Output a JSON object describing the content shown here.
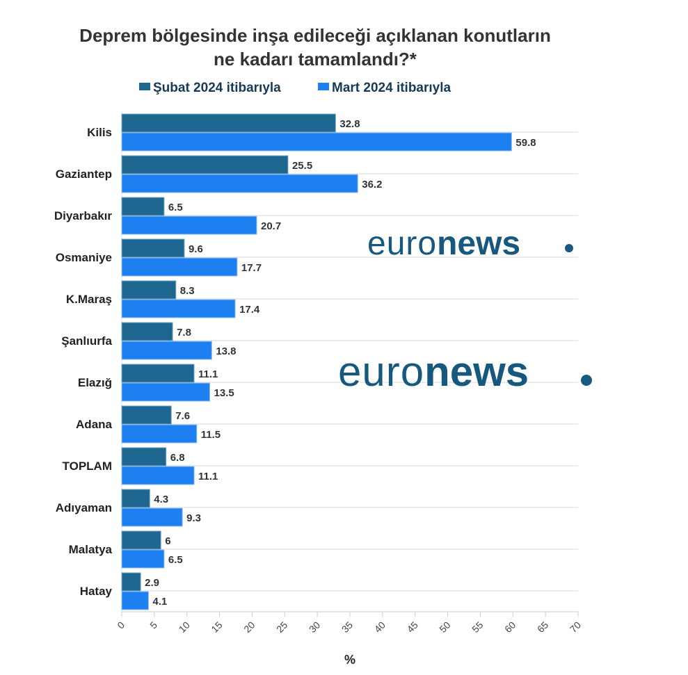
{
  "chart_data": {
    "type": "bar",
    "orientation": "horizontal",
    "title": "Deprem bölgesinde inşa edileceği açıklanan konutların ne kadarı tamamlandı?*",
    "title_lines": [
      "Deprem bölgesinde inşa edileceği açıklanan konutların",
      "ne kadarı tamamlandı?*"
    ],
    "categories": [
      "Kilis",
      "Gaziantep",
      "Diyarbakır",
      "Osmaniye",
      "K.Maraş",
      "Şanlıurfa",
      "Elazığ",
      "Adana",
      "TOPLAM",
      "Adıyaman",
      "Malatya",
      "Hatay"
    ],
    "series": [
      {
        "name": "Şubat 2024 itibarıyla",
        "color": "#1c6690",
        "values": [
          32.8,
          25.5,
          6.5,
          9.6,
          8.3,
          7.8,
          11.1,
          7.6,
          6.8,
          4.3,
          6,
          2.9
        ]
      },
      {
        "name": "Mart 2024 itibarıyla",
        "color": "#1e80f0",
        "values": [
          59.8,
          36.2,
          20.7,
          17.7,
          17.4,
          13.8,
          13.5,
          11.5,
          11.1,
          9.3,
          6.5,
          4.1
        ]
      }
    ],
    "xlabel": "%",
    "ylabel": "",
    "xlim": [
      0,
      70
    ],
    "xticks": [
      0,
      5,
      10,
      15,
      20,
      25,
      30,
      35,
      40,
      45,
      50,
      55,
      60,
      65,
      70
    ],
    "grid": true,
    "legend_position": "top"
  },
  "watermark": {
    "brand": "euronews."
  }
}
